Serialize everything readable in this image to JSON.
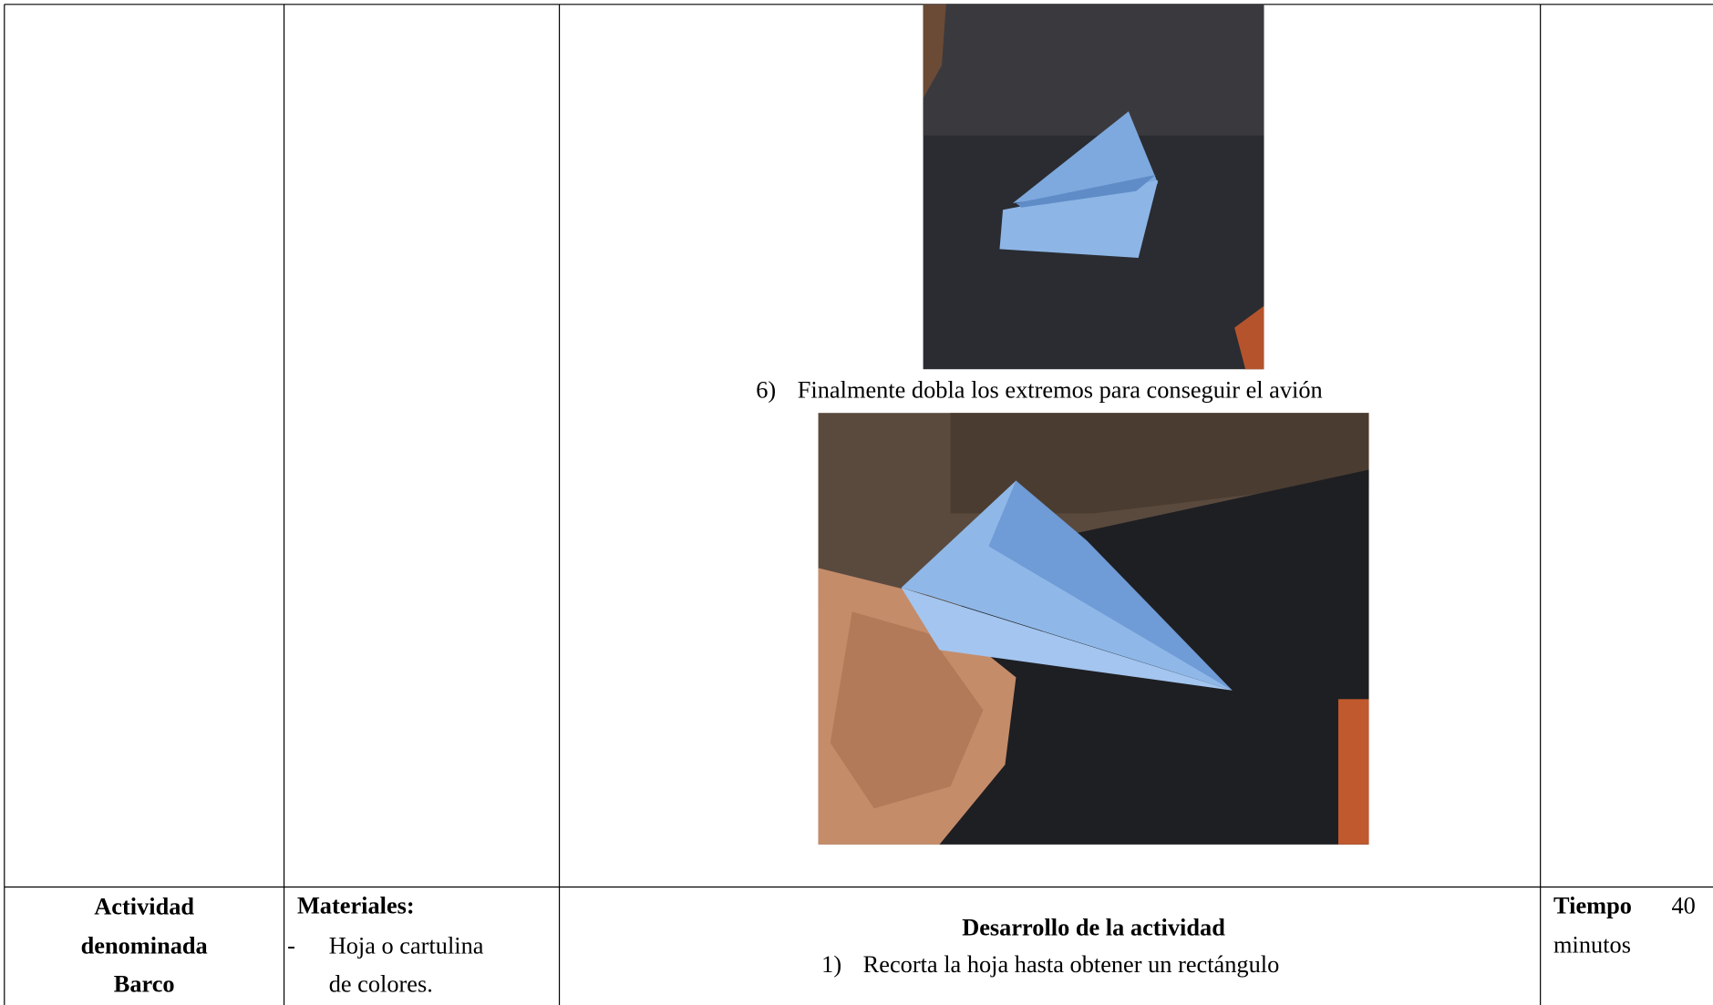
{
  "step6": {
    "number": "6)",
    "text": "Finalmente dobla los extremos para conseguir el avión"
  },
  "activity": {
    "lines": [
      "Actividad",
      "denominada",
      "Barco"
    ]
  },
  "materials": {
    "title": "Materiales:",
    "items": [
      {
        "bullet": "-",
        "lines": [
          "Hoja o cartulina",
          "de colores."
        ]
      }
    ]
  },
  "development": {
    "title": "Desarrollo de la actividad",
    "steps": [
      {
        "number": "1)",
        "text": "Recorta la hoja hasta obtener un rectángulo"
      }
    ]
  },
  "time": {
    "label": "Tiempo",
    "value": "40",
    "unit": "minutos"
  }
}
